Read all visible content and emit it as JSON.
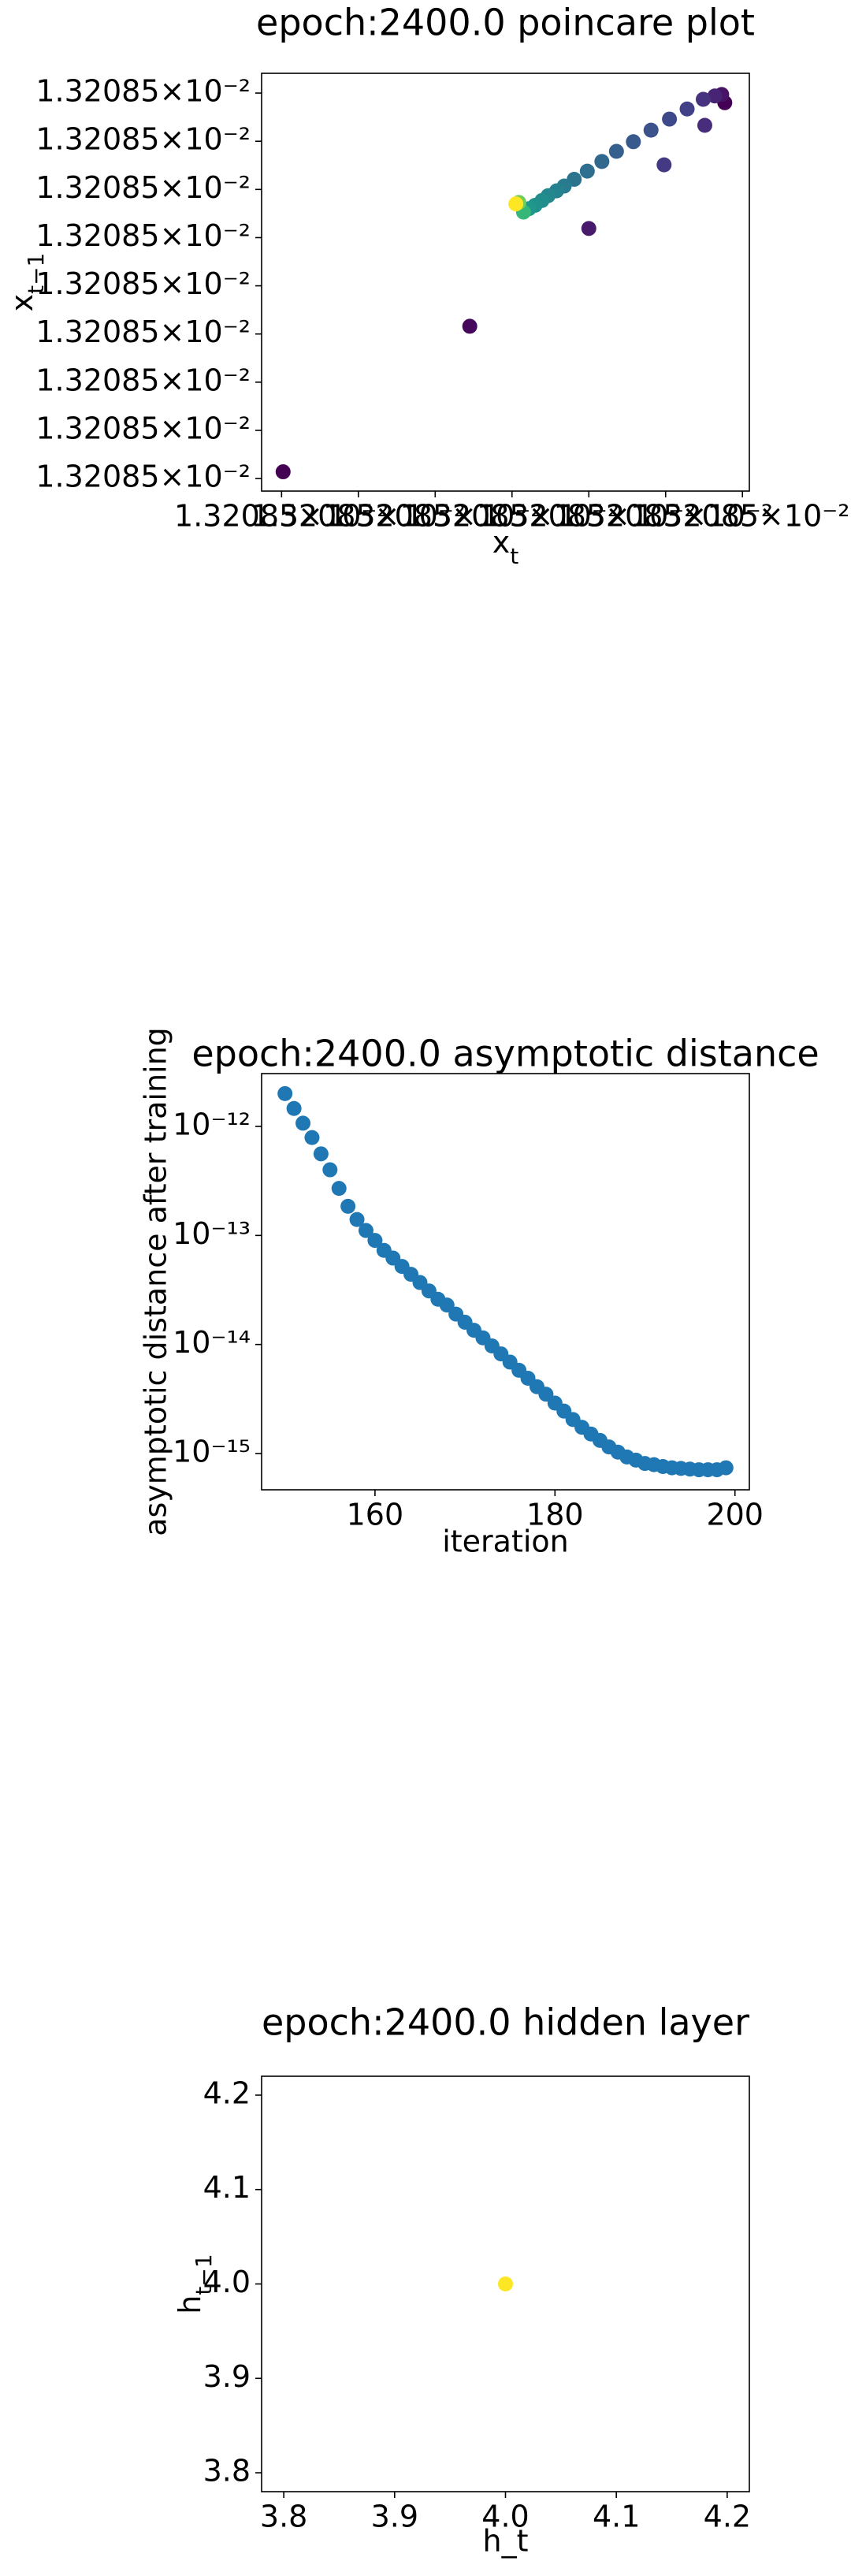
{
  "chart_data": [
    {
      "type": "scatter",
      "title": "epoch:2400.0 poincare plot",
      "x_label": {
        "text": "x",
        "sub": "t"
      },
      "y_label": {
        "text": "x",
        "sub": "t−1"
      },
      "x": [
        0.01320850002,
        0.01320850577,
        0.01320850245,
        0.01320850573,
        0.013208504,
        0.01320850564,
        0.01320850551,
        0.01320850549,
        0.01320850498,
        0.01320850528,
        0.01320850505,
        0.01320850481,
        0.01320850458,
        0.01320850436,
        0.01320850417,
        0.01320850398,
        0.01320850381,
        0.01320850368,
        0.01320850358,
        0.01320850347,
        0.01320850339,
        0.0132085033,
        0.01320850322,
        0.01320850315,
        0.01320850309,
        0.01320850305
      ],
      "y": [
        0.01320850014,
        0.0132085078,
        0.01320850316,
        0.01320850797,
        0.01320850519,
        0.01320850794,
        0.01320850733,
        0.01320850787,
        0.01320850651,
        0.01320850767,
        0.01320850746,
        0.01320850723,
        0.01320850699,
        0.01320850679,
        0.01320850658,
        0.01320850638,
        0.01320850621,
        0.01320850607,
        0.01320850597,
        0.01320850587,
        0.01320850577,
        0.01320850567,
        0.0132085056,
        0.01320850553,
        0.01320850573,
        0.0132085057
      ],
      "colors": [
        "#440154",
        "#440154",
        "#46085c",
        "#471365",
        "#481a6c",
        "#482475",
        "#472d7b",
        "#46327e",
        "#443983",
        "#424086",
        "#3e4989",
        "#3b528b",
        "#38598c",
        "#355f8d",
        "#31688e",
        "#2e6e8e",
        "#2c738e",
        "#297b8e",
        "#26818e",
        "#24878e",
        "#228d8d",
        "#20928c",
        "#1f988b",
        "#35b779",
        "#6ece58",
        "#fde725"
      ],
      "xlim": [
        0.01320849974,
        0.01320850609
      ],
      "ylim": [
        0.01320849974,
        0.01320850841
      ],
      "xticks": [
        {
          "value": 0.0132085,
          "label": "1.32085×10⁻²"
        },
        {
          "value": 0.013208501,
          "label": "1.32085×10⁻²"
        },
        {
          "value": 0.013208502,
          "label": "1.32085×10⁻²"
        },
        {
          "value": 0.013208503,
          "label": "1.32085×10⁻²"
        },
        {
          "value": 0.013208504,
          "label": "1.32085×10⁻²"
        },
        {
          "value": 0.013208505,
          "label": "1.32085×10⁻²"
        },
        {
          "value": 0.013208506,
          "label": "1.32085×10⁻²"
        }
      ],
      "yticks": [
        {
          "value": 0.0132085,
          "label": "1.32085×10⁻²"
        },
        {
          "value": 0.013208501,
          "label": "1.32085×10⁻²"
        },
        {
          "value": 0.013208502,
          "label": "1.32085×10⁻²"
        },
        {
          "value": 0.013208503,
          "label": "1.32085×10⁻²"
        },
        {
          "value": 0.013208504,
          "label": "1.32085×10⁻²"
        },
        {
          "value": 0.013208505,
          "label": "1.32085×10⁻²"
        },
        {
          "value": 0.013208506,
          "label": "1.32085×10⁻²"
        },
        {
          "value": 0.013208507,
          "label": "1.32085×10⁻²"
        },
        {
          "value": 0.013208508,
          "label": "1.32085×10⁻²"
        }
      ]
    },
    {
      "type": "scatter",
      "title": "epoch:2400.0 asymptotic distance",
      "x_label": "iteration",
      "y_label": "asymptotic distance after training",
      "ylog": true,
      "color": "#1f77b4",
      "x": [
        150,
        151,
        152,
        153,
        154,
        155,
        156,
        157,
        158,
        159,
        160,
        161,
        162,
        163,
        164,
        165,
        166,
        167,
        168,
        169,
        170,
        171,
        172,
        173,
        174,
        175,
        176,
        177,
        178,
        179,
        180,
        181,
        182,
        183,
        184,
        185,
        186,
        187,
        188,
        189,
        190,
        191,
        192,
        193,
        194,
        195,
        196,
        197,
        198,
        199
      ],
      "y": [
        2e-12,
        1.46e-12,
        1.07e-12,
        7.9e-13,
        5.6e-13,
        4e-13,
        2.7e-13,
        1.85e-13,
        1.4e-13,
        1.11e-13,
        9e-14,
        7.3e-14,
        6.2e-14,
        5.2e-14,
        4.4e-14,
        3.7e-14,
        3.1e-14,
        2.6e-14,
        2.3e-14,
        1.9e-14,
        1.6e-14,
        1.35e-14,
        1.15e-14,
        9.7e-15,
        8.2e-15,
        6.9e-15,
        5.8e-15,
        4.9e-15,
        4.1e-15,
        3.5e-15,
        2.9e-15,
        2.45e-15,
        2.05e-15,
        1.74e-15,
        1.51e-15,
        1.32e-15,
        1.15e-15,
        1.03e-15,
        9.3e-16,
        8.7e-16,
        8.1e-16,
        7.9e-16,
        7.6e-16,
        7.4e-16,
        7.3e-16,
        7.2e-16,
        7.1e-16,
        7.1e-16,
        7.1e-16,
        7.4e-16
      ],
      "xlim": [
        147.4,
        201.6
      ],
      "ylim": [
        4.65e-16,
        3.05e-12
      ],
      "xticks": [
        160,
        180,
        200
      ],
      "yticks": [
        {
          "value": 1e-12,
          "label": "10⁻¹²"
        },
        {
          "value": 1e-13,
          "label": "10⁻¹³"
        },
        {
          "value": 1e-14,
          "label": "10⁻¹⁴"
        },
        {
          "value": 1e-15,
          "label": "10⁻¹⁵"
        }
      ]
    },
    {
      "type": "scatter",
      "title": "epoch:2400.0 hidden layer",
      "x_label": "h_t",
      "y_label": {
        "text": "h",
        "sub": "t−1"
      },
      "color": "#fde725",
      "x": [
        4
      ],
      "y": [
        4
      ],
      "xlim": [
        3.78,
        4.22
      ],
      "ylim": [
        3.78,
        4.22
      ],
      "xticks": [
        3.8,
        3.9,
        {
          "value": 4,
          "label": "4.0"
        },
        4.1,
        4.2
      ],
      "yticks": [
        3.8,
        3.9,
        {
          "value": 4,
          "label": "4.0"
        },
        4.1,
        4.2
      ]
    }
  ]
}
